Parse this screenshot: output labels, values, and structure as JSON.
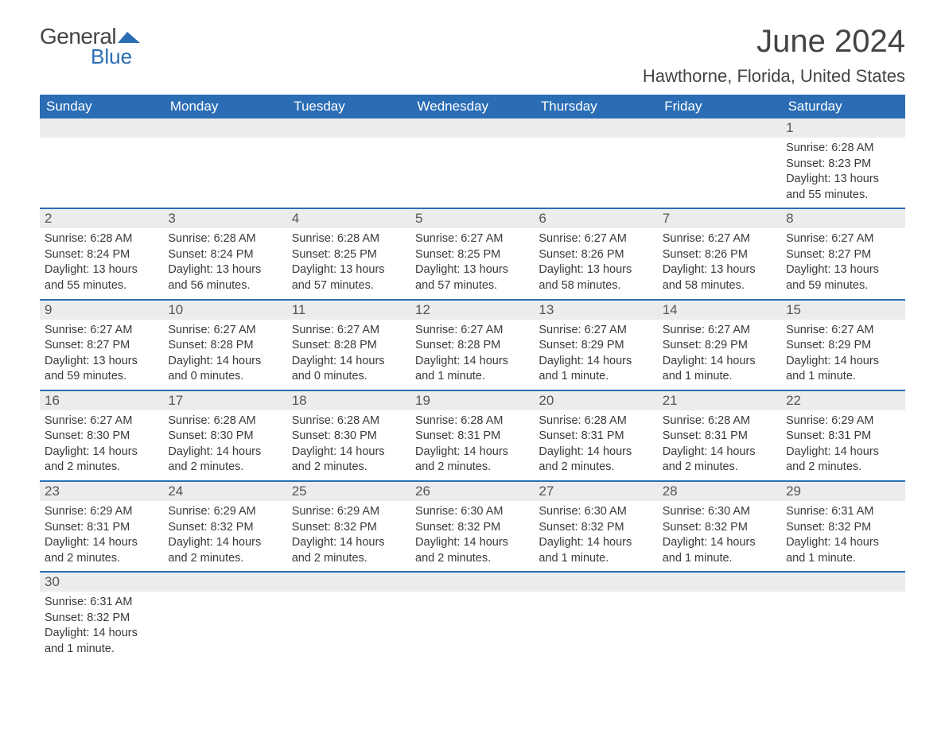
{
  "logo": {
    "word1": "General",
    "word2": "Blue",
    "shape_color": "#2a6db5",
    "word1_color": "#444444"
  },
  "title": {
    "month": "June 2024",
    "location": "Hawthorne, Florida, United States"
  },
  "colors": {
    "header_bg": "#2a6db5",
    "header_text": "#ffffff",
    "daynum_bg": "#ececec",
    "row_divider": "#2a6db5",
    "text": "#3a3a3a"
  },
  "weekdays": [
    "Sunday",
    "Monday",
    "Tuesday",
    "Wednesday",
    "Thursday",
    "Friday",
    "Saturday"
  ],
  "weeks": [
    [
      null,
      null,
      null,
      null,
      null,
      null,
      {
        "n": "1",
        "sunrise": "Sunrise: 6:28 AM",
        "sunset": "Sunset: 8:23 PM",
        "dl1": "Daylight: 13 hours",
        "dl2": "and 55 minutes."
      }
    ],
    [
      {
        "n": "2",
        "sunrise": "Sunrise: 6:28 AM",
        "sunset": "Sunset: 8:24 PM",
        "dl1": "Daylight: 13 hours",
        "dl2": "and 55 minutes."
      },
      {
        "n": "3",
        "sunrise": "Sunrise: 6:28 AM",
        "sunset": "Sunset: 8:24 PM",
        "dl1": "Daylight: 13 hours",
        "dl2": "and 56 minutes."
      },
      {
        "n": "4",
        "sunrise": "Sunrise: 6:28 AM",
        "sunset": "Sunset: 8:25 PM",
        "dl1": "Daylight: 13 hours",
        "dl2": "and 57 minutes."
      },
      {
        "n": "5",
        "sunrise": "Sunrise: 6:27 AM",
        "sunset": "Sunset: 8:25 PM",
        "dl1": "Daylight: 13 hours",
        "dl2": "and 57 minutes."
      },
      {
        "n": "6",
        "sunrise": "Sunrise: 6:27 AM",
        "sunset": "Sunset: 8:26 PM",
        "dl1": "Daylight: 13 hours",
        "dl2": "and 58 minutes."
      },
      {
        "n": "7",
        "sunrise": "Sunrise: 6:27 AM",
        "sunset": "Sunset: 8:26 PM",
        "dl1": "Daylight: 13 hours",
        "dl2": "and 58 minutes."
      },
      {
        "n": "8",
        "sunrise": "Sunrise: 6:27 AM",
        "sunset": "Sunset: 8:27 PM",
        "dl1": "Daylight: 13 hours",
        "dl2": "and 59 minutes."
      }
    ],
    [
      {
        "n": "9",
        "sunrise": "Sunrise: 6:27 AM",
        "sunset": "Sunset: 8:27 PM",
        "dl1": "Daylight: 13 hours",
        "dl2": "and 59 minutes."
      },
      {
        "n": "10",
        "sunrise": "Sunrise: 6:27 AM",
        "sunset": "Sunset: 8:28 PM",
        "dl1": "Daylight: 14 hours",
        "dl2": "and 0 minutes."
      },
      {
        "n": "11",
        "sunrise": "Sunrise: 6:27 AM",
        "sunset": "Sunset: 8:28 PM",
        "dl1": "Daylight: 14 hours",
        "dl2": "and 0 minutes."
      },
      {
        "n": "12",
        "sunrise": "Sunrise: 6:27 AM",
        "sunset": "Sunset: 8:28 PM",
        "dl1": "Daylight: 14 hours",
        "dl2": "and 1 minute."
      },
      {
        "n": "13",
        "sunrise": "Sunrise: 6:27 AM",
        "sunset": "Sunset: 8:29 PM",
        "dl1": "Daylight: 14 hours",
        "dl2": "and 1 minute."
      },
      {
        "n": "14",
        "sunrise": "Sunrise: 6:27 AM",
        "sunset": "Sunset: 8:29 PM",
        "dl1": "Daylight: 14 hours",
        "dl2": "and 1 minute."
      },
      {
        "n": "15",
        "sunrise": "Sunrise: 6:27 AM",
        "sunset": "Sunset: 8:29 PM",
        "dl1": "Daylight: 14 hours",
        "dl2": "and 1 minute."
      }
    ],
    [
      {
        "n": "16",
        "sunrise": "Sunrise: 6:27 AM",
        "sunset": "Sunset: 8:30 PM",
        "dl1": "Daylight: 14 hours",
        "dl2": "and 2 minutes."
      },
      {
        "n": "17",
        "sunrise": "Sunrise: 6:28 AM",
        "sunset": "Sunset: 8:30 PM",
        "dl1": "Daylight: 14 hours",
        "dl2": "and 2 minutes."
      },
      {
        "n": "18",
        "sunrise": "Sunrise: 6:28 AM",
        "sunset": "Sunset: 8:30 PM",
        "dl1": "Daylight: 14 hours",
        "dl2": "and 2 minutes."
      },
      {
        "n": "19",
        "sunrise": "Sunrise: 6:28 AM",
        "sunset": "Sunset: 8:31 PM",
        "dl1": "Daylight: 14 hours",
        "dl2": "and 2 minutes."
      },
      {
        "n": "20",
        "sunrise": "Sunrise: 6:28 AM",
        "sunset": "Sunset: 8:31 PM",
        "dl1": "Daylight: 14 hours",
        "dl2": "and 2 minutes."
      },
      {
        "n": "21",
        "sunrise": "Sunrise: 6:28 AM",
        "sunset": "Sunset: 8:31 PM",
        "dl1": "Daylight: 14 hours",
        "dl2": "and 2 minutes."
      },
      {
        "n": "22",
        "sunrise": "Sunrise: 6:29 AM",
        "sunset": "Sunset: 8:31 PM",
        "dl1": "Daylight: 14 hours",
        "dl2": "and 2 minutes."
      }
    ],
    [
      {
        "n": "23",
        "sunrise": "Sunrise: 6:29 AM",
        "sunset": "Sunset: 8:31 PM",
        "dl1": "Daylight: 14 hours",
        "dl2": "and 2 minutes."
      },
      {
        "n": "24",
        "sunrise": "Sunrise: 6:29 AM",
        "sunset": "Sunset: 8:32 PM",
        "dl1": "Daylight: 14 hours",
        "dl2": "and 2 minutes."
      },
      {
        "n": "25",
        "sunrise": "Sunrise: 6:29 AM",
        "sunset": "Sunset: 8:32 PM",
        "dl1": "Daylight: 14 hours",
        "dl2": "and 2 minutes."
      },
      {
        "n": "26",
        "sunrise": "Sunrise: 6:30 AM",
        "sunset": "Sunset: 8:32 PM",
        "dl1": "Daylight: 14 hours",
        "dl2": "and 2 minutes."
      },
      {
        "n": "27",
        "sunrise": "Sunrise: 6:30 AM",
        "sunset": "Sunset: 8:32 PM",
        "dl1": "Daylight: 14 hours",
        "dl2": "and 1 minute."
      },
      {
        "n": "28",
        "sunrise": "Sunrise: 6:30 AM",
        "sunset": "Sunset: 8:32 PM",
        "dl1": "Daylight: 14 hours",
        "dl2": "and 1 minute."
      },
      {
        "n": "29",
        "sunrise": "Sunrise: 6:31 AM",
        "sunset": "Sunset: 8:32 PM",
        "dl1": "Daylight: 14 hours",
        "dl2": "and 1 minute."
      }
    ],
    [
      {
        "n": "30",
        "sunrise": "Sunrise: 6:31 AM",
        "sunset": "Sunset: 8:32 PM",
        "dl1": "Daylight: 14 hours",
        "dl2": "and 1 minute."
      },
      null,
      null,
      null,
      null,
      null,
      null
    ]
  ]
}
